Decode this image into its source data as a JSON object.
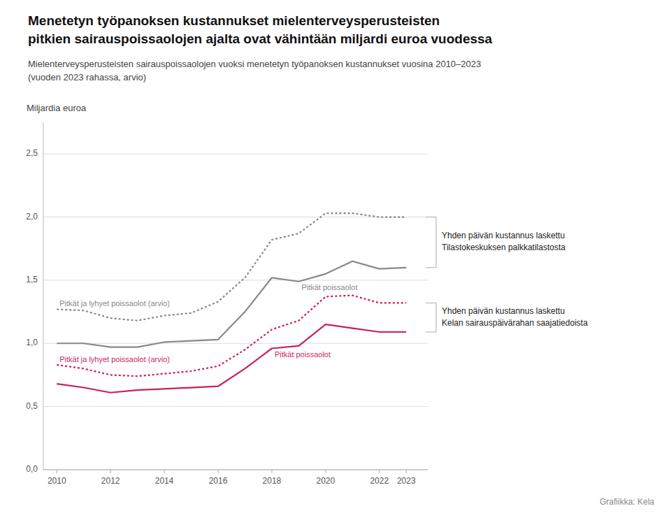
{
  "chart_data": {
    "type": "line",
    "title": "Menetetyn työpanoksen kustannukset mielenterveysperusteisten\npitkien sairauspoissaolojen ajalta ovat vähintään miljardi euroa vuodessa",
    "subtitle": "Mielenterveysperusteisten sairauspoissaolojen vuoksi menetetyn työpanoksen kustannukset vuosina 2010–2023\n(vuoden 2023 rahassa, arvio)",
    "y_label": "Miljardia euroa",
    "source": "Grafiikka: Kela",
    "x": [
      2010,
      2011,
      2012,
      2013,
      2014,
      2015,
      2016,
      2017,
      2018,
      2019,
      2020,
      2021,
      2022,
      2023
    ],
    "xlim": [
      2009.5,
      2023.8
    ],
    "xticks": [
      2010,
      2012,
      2014,
      2016,
      2018,
      2020,
      2022,
      2023
    ],
    "ylim": [
      0.0,
      2.75
    ],
    "yticks": [
      {
        "value": 0.0,
        "label": "0,0"
      },
      {
        "value": 0.5,
        "label": "0,5"
      },
      {
        "value": 1.0,
        "label": "1,0"
      },
      {
        "value": 1.5,
        "label": "1,5"
      },
      {
        "value": 2.0,
        "label": "2,0"
      },
      {
        "value": 2.5,
        "label": "2,5"
      }
    ],
    "grid": true,
    "series": [
      {
        "name": "Pitkät ja lyhyet poissaolot (arvio)",
        "color": "#888888",
        "line_style": "dotted",
        "values": [
          1.27,
          1.26,
          1.2,
          1.18,
          1.22,
          1.24,
          1.33,
          1.52,
          1.82,
          1.87,
          2.03,
          2.03,
          2.0,
          2.0
        ]
      },
      {
        "name": "Pitkät poissaolot",
        "color": "#888888",
        "line_style": "solid",
        "values": [
          1.0,
          1.0,
          0.97,
          0.97,
          1.01,
          1.02,
          1.03,
          1.25,
          1.52,
          1.49,
          1.55,
          1.65,
          1.59,
          1.6
        ]
      },
      {
        "name": "Pitkät ja lyhyet poissaolot (arvio)",
        "color": "#CC1F5A",
        "line_style": "dotted",
        "values": [
          0.83,
          0.8,
          0.75,
          0.74,
          0.76,
          0.78,
          0.82,
          0.95,
          1.11,
          1.18,
          1.37,
          1.38,
          1.32,
          1.32
        ]
      },
      {
        "name": "Pitkät poissaolot",
        "color": "#CC1F5A",
        "line_style": "solid",
        "values": [
          0.68,
          0.65,
          0.61,
          0.63,
          0.64,
          0.65,
          0.66,
          0.8,
          0.96,
          0.98,
          1.15,
          1.12,
          1.09,
          1.09
        ]
      }
    ],
    "annotations": [
      "Yhden päivän kustannus laskettu\nTilastokeskuksen palkkatilastosta",
      "Yhden päivän kustannus laskettu\nKelan sairauspäivärahan saajatiedoista"
    ]
  }
}
